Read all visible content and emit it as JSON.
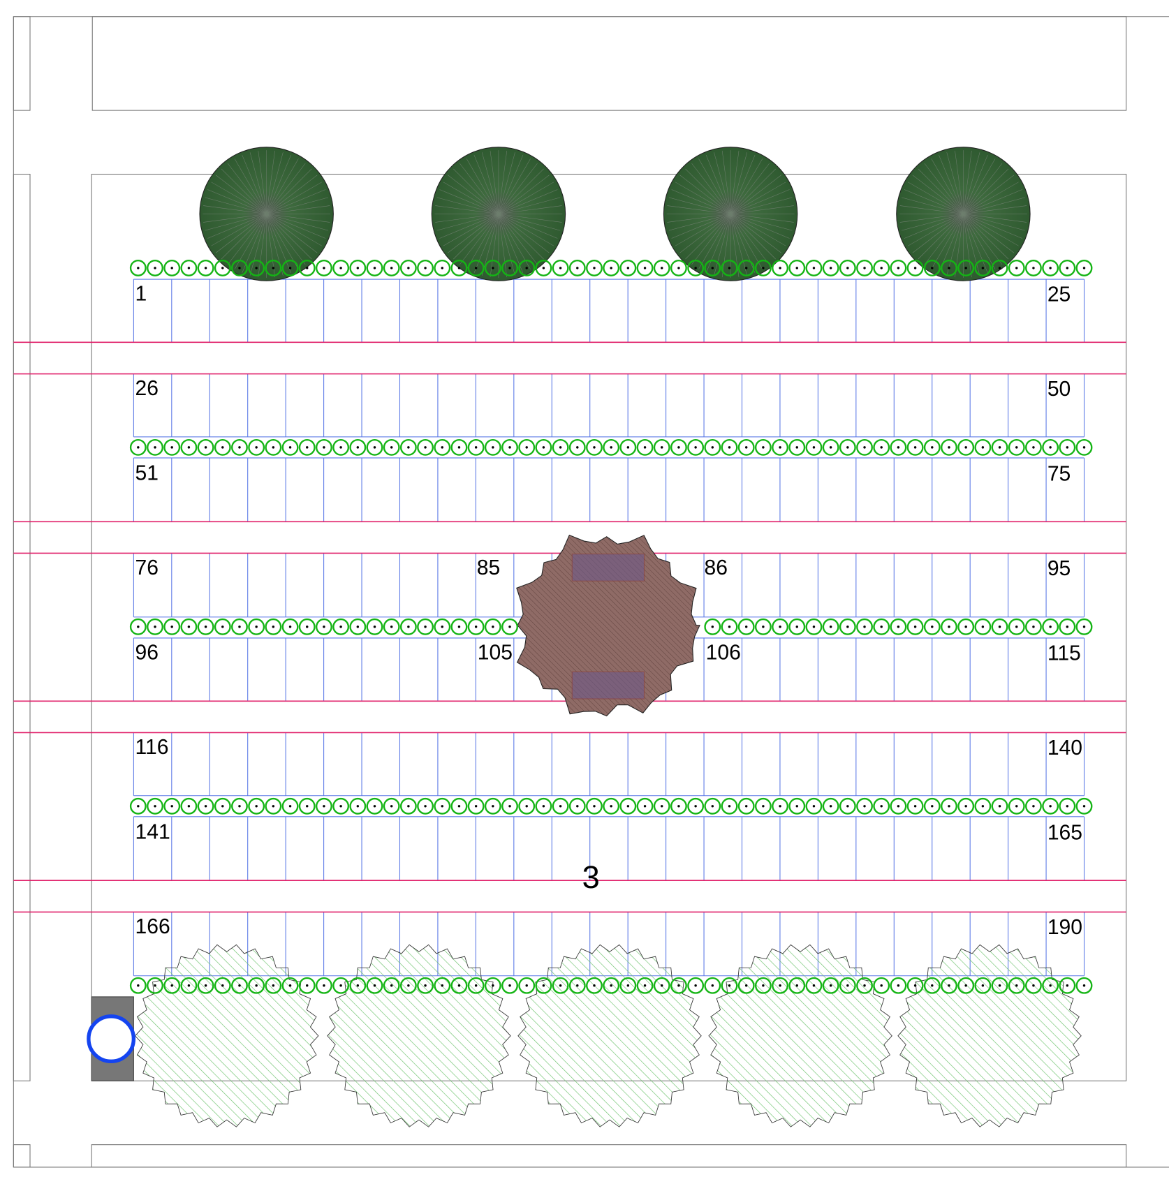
{
  "stall_labels": [
    "1",
    "25",
    "26",
    "50",
    "51",
    "75",
    "76",
    "85",
    "86",
    "95",
    "96",
    "105",
    "106",
    "115",
    "116",
    "140",
    "141",
    "165",
    "166",
    "190"
  ],
  "section_label": "3"
}
